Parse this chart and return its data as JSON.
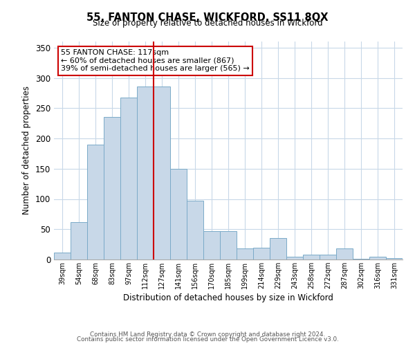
{
  "title": "55, FANTON CHASE, WICKFORD, SS11 8QX",
  "subtitle": "Size of property relative to detached houses in Wickford",
  "xlabel": "Distribution of detached houses by size in Wickford",
  "ylabel": "Number of detached properties",
  "bin_labels": [
    "39sqm",
    "54sqm",
    "68sqm",
    "83sqm",
    "97sqm",
    "112sqm",
    "127sqm",
    "141sqm",
    "156sqm",
    "170sqm",
    "185sqm",
    "199sqm",
    "214sqm",
    "229sqm",
    "243sqm",
    "258sqm",
    "272sqm",
    "287sqm",
    "302sqm",
    "316sqm",
    "331sqm"
  ],
  "bar_heights": [
    12,
    62,
    190,
    236,
    268,
    286,
    286,
    150,
    97,
    47,
    47,
    18,
    19,
    35,
    5,
    8,
    8,
    18,
    1,
    5,
    2
  ],
  "bar_color": "#c8d8e8",
  "bar_edge_color": "#7aaac8",
  "vline_color": "#cc0000",
  "ylim": [
    0,
    360
  ],
  "yticks": [
    0,
    50,
    100,
    150,
    200,
    250,
    300,
    350
  ],
  "annotation_text": "55 FANTON CHASE: 117sqm\n← 60% of detached houses are smaller (867)\n39% of semi-detached houses are larger (565) →",
  "footer_line1": "Contains HM Land Registry data © Crown copyright and database right 2024.",
  "footer_line2": "Contains public sector information licensed under the Open Government Licence v3.0.",
  "background_color": "#ffffff",
  "grid_color": "#c8d8e8"
}
